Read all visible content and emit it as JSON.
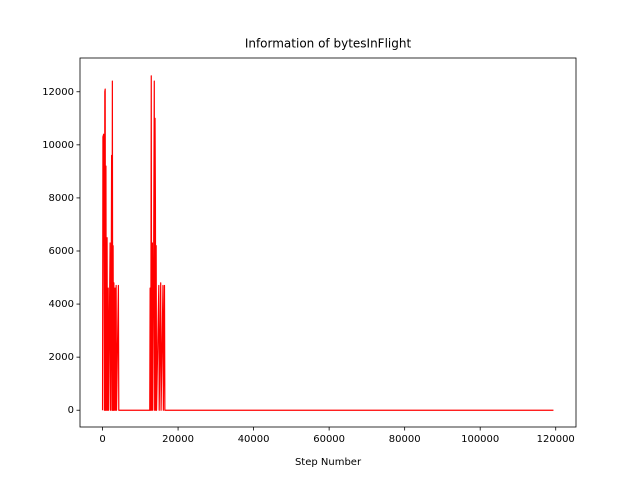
{
  "chart_data": {
    "type": "line",
    "title": "Information of bytesInFlight",
    "xlabel": "Step Number",
    "x": [
      0,
      100,
      300,
      500,
      600,
      700,
      800,
      900,
      1000,
      1200,
      1300,
      1500,
      1600,
      2000,
      2100,
      2300,
      2400,
      2500,
      2600,
      2700,
      2800,
      2900,
      3000,
      3100,
      3300,
      3400,
      3600,
      3700,
      4200,
      4300,
      12500,
      12600,
      12700,
      12800,
      12900,
      13000,
      13200,
      13300,
      13500,
      13700,
      13800,
      13900,
      14000,
      14100,
      14200,
      14300,
      14900,
      15000,
      15400,
      15500,
      16000,
      16100,
      16400,
      16500,
      119400
    ],
    "series": [
      {
        "color": "#ff0000",
        "values": [
          0,
          10300,
          10400,
          0,
          12000,
          12100,
          0,
          9200,
          0,
          6500,
          0,
          4600,
          0,
          6300,
          0,
          4600,
          9600,
          0,
          12400,
          0,
          6200,
          0,
          4800,
          0,
          4600,
          0,
          4700,
          0,
          4700,
          0,
          0,
          4600,
          0,
          3100,
          12600,
          0,
          6300,
          0,
          4600,
          12400,
          0,
          11000,
          7800,
          0,
          6200,
          0,
          4700,
          0,
          4800,
          0,
          4700,
          0,
          4700,
          0,
          0
        ]
      }
    ],
    "xlim": [
      -5970,
      125370
    ],
    "xticks": [
      0,
      20000,
      40000,
      60000,
      80000,
      100000,
      120000
    ],
    "ylim": [
      -632,
      13272
    ],
    "yticks": [
      0,
      2000,
      4000,
      6000,
      8000,
      10000,
      12000
    ]
  }
}
